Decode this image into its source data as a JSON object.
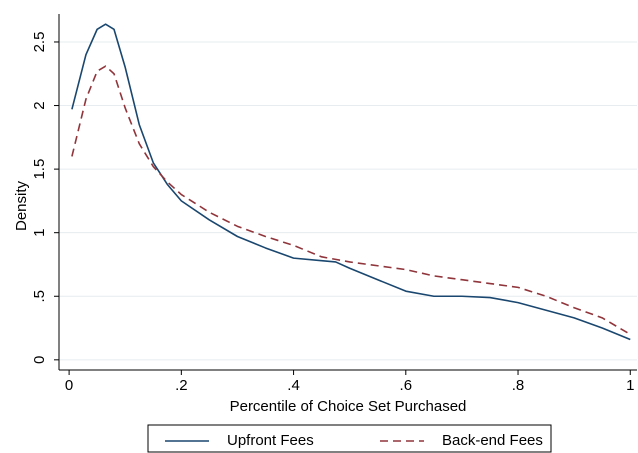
{
  "chart_data": {
    "type": "line",
    "x_label": "Percentile of Choice Set Purchased",
    "y_label": "Density",
    "x": [
      0.005,
      0.03,
      0.05,
      0.065,
      0.08,
      0.1,
      0.125,
      0.15,
      0.175,
      0.2,
      0.25,
      0.3,
      0.35,
      0.4,
      0.45,
      0.475,
      0.5,
      0.55,
      0.6,
      0.65,
      0.7,
      0.75,
      0.8,
      0.85,
      0.9,
      0.95,
      1.0
    ],
    "series": [
      {
        "name": "Upfront Fees",
        "color": "#1a476f",
        "dashed": false,
        "values": [
          1.97,
          2.4,
          2.6,
          2.64,
          2.6,
          2.3,
          1.85,
          1.55,
          1.38,
          1.25,
          1.1,
          0.97,
          0.88,
          0.8,
          0.78,
          0.77,
          0.72,
          0.63,
          0.54,
          0.5,
          0.5,
          0.49,
          0.45,
          0.39,
          0.33,
          0.25,
          0.16
        ]
      },
      {
        "name": "Back-end Fees",
        "color": "#90353b",
        "dashed": true,
        "values": [
          1.6,
          2.05,
          2.27,
          2.31,
          2.25,
          1.98,
          1.7,
          1.52,
          1.4,
          1.3,
          1.16,
          1.05,
          0.97,
          0.9,
          0.81,
          0.79,
          0.77,
          0.74,
          0.71,
          0.66,
          0.63,
          0.6,
          0.57,
          0.5,
          0.41,
          0.33,
          0.2
        ]
      }
    ],
    "xlim": [
      -0.018,
      1.012
    ],
    "ylim": [
      -0.08,
      2.72
    ],
    "xticks": [
      0,
      {
        "value": 0.2,
        "label": ".2"
      },
      {
        "value": 0.4,
        "label": ".4"
      },
      {
        "value": 0.6,
        "label": ".6"
      },
      {
        "value": 0.8,
        "label": ".8"
      },
      1
    ],
    "yticks": [
      0,
      {
        "value": 0.5,
        "label": ".5"
      },
      1,
      1.5,
      2,
      2.5
    ],
    "grid": true,
    "legend": "bottom"
  }
}
